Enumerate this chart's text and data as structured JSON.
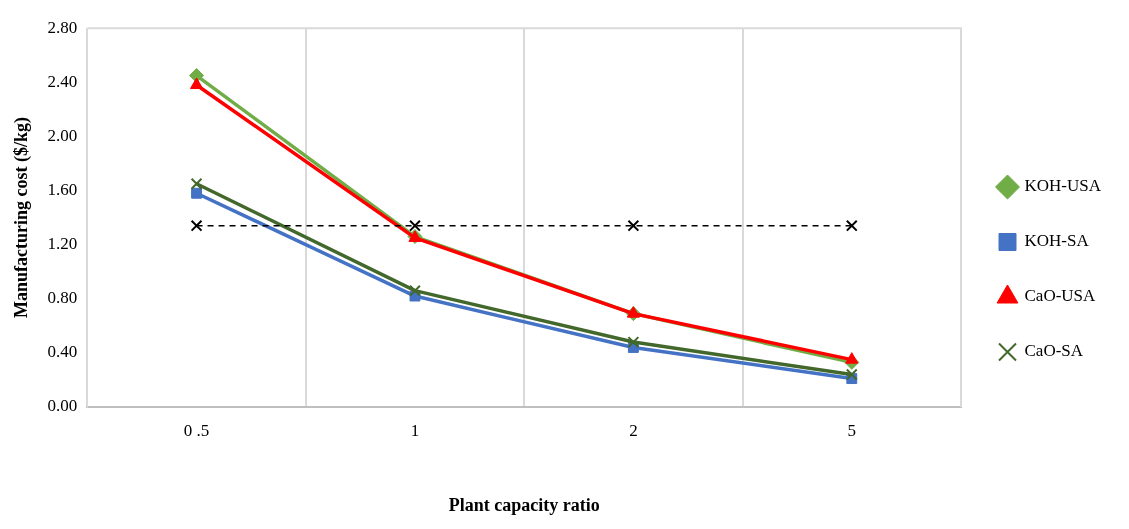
{
  "chart_data": {
    "type": "line",
    "xlabel": "Plant capacity ratio",
    "ylabel": "Manufacturing cost ($/kg)",
    "categories": [
      "0 .5",
      "1",
      "2",
      "5"
    ],
    "series": [
      {
        "name": "KOH-USA",
        "color": "#70ad47",
        "values": [
          2.45,
          1.26,
          0.69,
          0.33
        ],
        "marker": "diamond"
      },
      {
        "name": "KOH-SA",
        "color": "#4472c4",
        "values": [
          1.58,
          0.82,
          0.44,
          0.21
        ],
        "marker": "square"
      },
      {
        "name": "CaO-USA",
        "color": "#ff0000",
        "values": [
          2.38,
          1.25,
          0.69,
          0.35
        ],
        "marker": "triangle"
      },
      {
        "name": "CaO-SA",
        "color": "#43682b",
        "values": [
          1.65,
          0.86,
          0.48,
          0.24
        ],
        "marker": "cross"
      },
      {
        "color": "#000000",
        "values": [
          1.34,
          1.34,
          1.34,
          1.34
        ],
        "marker": "cross",
        "line_style": "dashed"
      }
    ],
    "ylim": [
      0,
      2.8
    ],
    "yticks": [
      {
        "value": 0,
        "label": "0.00"
      },
      {
        "value": 0.4,
        "label": "0.40"
      },
      {
        "value": 0.8,
        "label": "0.80"
      },
      {
        "value": 1.2,
        "label": "1.20"
      },
      {
        "value": 1.6,
        "label": "1.60"
      },
      {
        "value": 2,
        "label": "2.00"
      },
      {
        "value": 2.4,
        "label": "2.40"
      },
      {
        "value": 2.8,
        "label": "2.80"
      }
    ],
    "grid": "x",
    "legend": "right"
  }
}
